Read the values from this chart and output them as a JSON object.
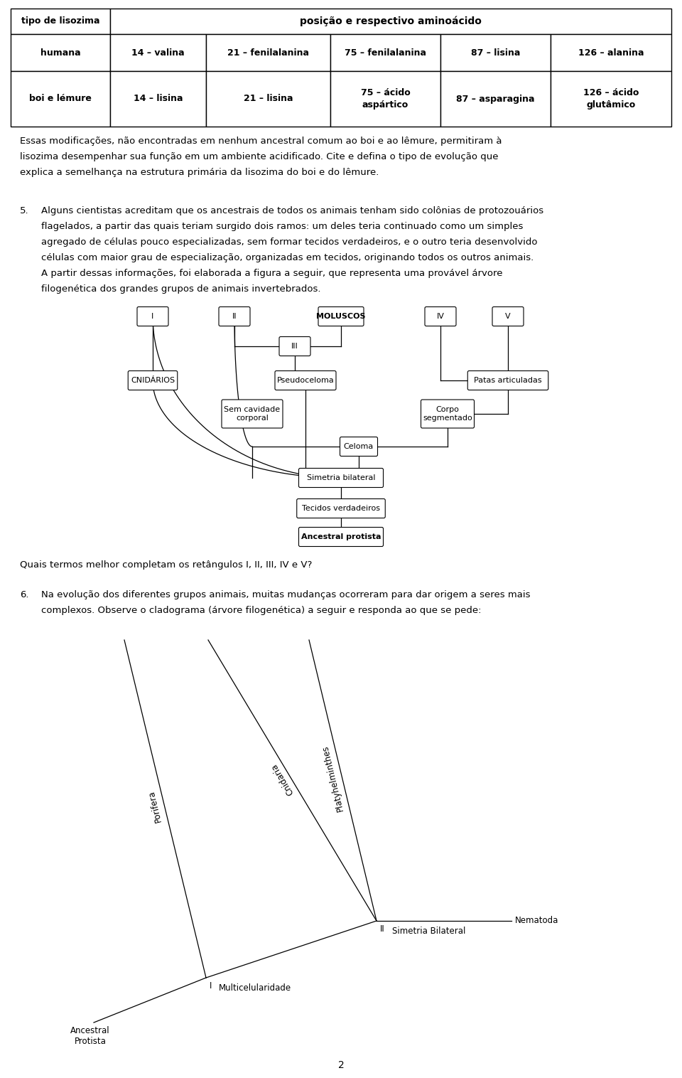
{
  "background_color": "#ffffff",
  "page_number": "2",
  "table": {
    "rows": [
      {
        "label": "humana",
        "cells": [
          "14 – valina",
          "21 – fenilalanina",
          "75 – fenilalanina",
          "87 – lisina",
          "126 – alanina"
        ]
      },
      {
        "label": "boi e lémure",
        "cells": [
          "14 – lisina",
          "21 – lisina",
          "75 – ácido\naspártico",
          "87 – asparagina",
          "126 – ácido\nglutâmico"
        ]
      }
    ]
  },
  "para1_line1": "Essas modificações, não encontradas em nenhum ancestral comum ao boi e ao lêmure, permitiram à",
  "para1_line2": "lisozima desempenhar sua função em um ambiente acidificado. Cite e defina o tipo de evolução que",
  "para1_line3": "explica a semelhança na estrutura primária da lisozima do boi e do lêmure.",
  "q5_text_lines": [
    "Alguns cientistas acreditam que os ancestrais de todos os animais tenham sido colônias de protozouários",
    "flagelados, a partir das quais teriam surgido dois ramos: um deles teria continuado como um simples",
    "agregado de células pouco especializadas, sem formar tecidos verdadeiros, e o outro teria desenvolvido",
    "células com maior grau de especialização, organizadas em tecidos, originando todos os outros animais.",
    "A partir dessas informações, foi elaborada a figura a seguir, que representa uma provável árvore",
    "filogenética dos grandes grupos de animais invertebrados."
  ],
  "q5_sub": "Quais termos melhor completam os retângulos I, II, III, IV e V?",
  "q6_text_lines": [
    "Na evolução dos diferentes grupos animais, muitas mudanças ocorreram para dar origem a seres mais",
    "complexos. Observe o cladograma (árvore filogenética) a seguir e responda ao que se pede:"
  ]
}
